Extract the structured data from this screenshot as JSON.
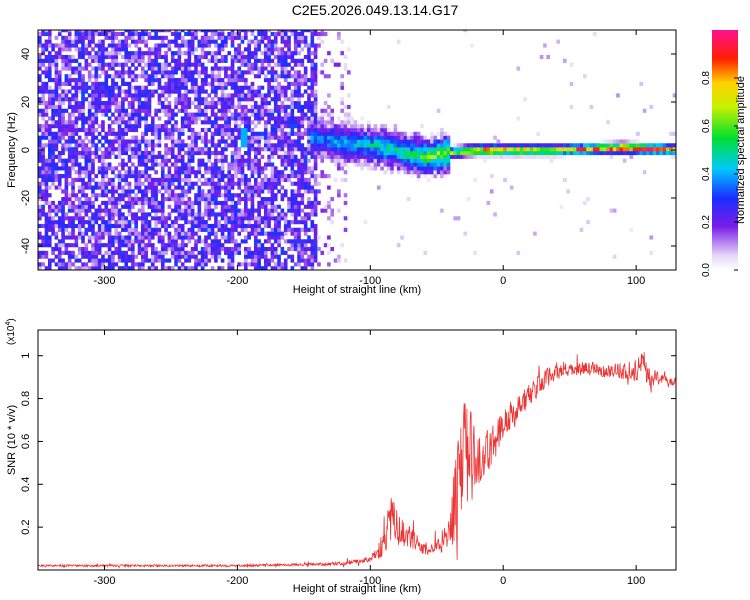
{
  "title": "C2E5.2026.049.13.14.G17",
  "chart_data": [
    {
      "type": "heatmap",
      "xlabel": "Height of straight line (km)",
      "ylabel": "Frequency (Hz)",
      "xlim": [
        -350,
        130
      ],
      "ylim": [
        -50,
        50
      ],
      "xticks": [
        -300,
        -200,
        -100,
        0,
        100
      ],
      "yticks": [
        -40,
        -20,
        0,
        20,
        40
      ],
      "colorbar": {
        "label": "Normalized spectral amplitude",
        "range": [
          0.0,
          1.0
        ],
        "ticks": [
          0.0,
          0.2,
          0.4,
          0.6,
          0.8
        ],
        "colormap": "rainbow (white-purple-blue-cyan-green-yellow-red-magenta)"
      },
      "ridge": {
        "description": "Signal ridge: noise at 0.1–0.3 for heights below -140 km; scattered tone near -195 km; concentrated energy near 0 Hz above -140 km, peaking (about 0.9–1.0) near 0 Hz from -40 to 130 km",
        "points": [
          {
            "x": -140,
            "freq": 5,
            "amp": 0.4
          },
          {
            "x": -120,
            "freq": 3,
            "amp": 0.45
          },
          {
            "x": -100,
            "freq": 2,
            "amp": 0.5
          },
          {
            "x": -80,
            "freq": 0,
            "amp": 0.55
          },
          {
            "x": -60,
            "freq": -3,
            "amp": 0.6
          },
          {
            "x": -40,
            "freq": -1,
            "amp": 0.75
          },
          {
            "x": -20,
            "freq": 0,
            "amp": 0.9
          },
          {
            "x": 0,
            "freq": 0,
            "amp": 0.95
          },
          {
            "x": 40,
            "freq": 0,
            "amp": 0.8
          },
          {
            "x": 90,
            "freq": 1,
            "amp": 1.0
          },
          {
            "x": 130,
            "freq": 0,
            "amp": 0.85
          }
        ]
      }
    },
    {
      "type": "line",
      "xlabel": "Height of straight line (km)",
      "ylabel": "SNR (10 * v/v)",
      "ymultiplier": "(x10^4)",
      "ymultiplier_base": "(x10",
      "ymultiplier_exp": "4",
      "ymultiplier_close": ")",
      "xlim": [
        -350,
        130
      ],
      "ylim": [
        0,
        1.12
      ],
      "xticks": [
        -300,
        -200,
        -100,
        0,
        100
      ],
      "yticks": [
        0.2,
        0.4,
        0.6,
        0.8,
        1
      ],
      "color": "#ee3333",
      "series": [
        {
          "name": "SNR",
          "x": [
            -350,
            -300,
            -250,
            -200,
            -150,
            -120,
            -100,
            -90,
            -85,
            -80,
            -70,
            -60,
            -50,
            -40,
            -35,
            -30,
            -25,
            -20,
            -15,
            -10,
            -5,
            0,
            10,
            20,
            30,
            40,
            50,
            60,
            80,
            100,
            105,
            110,
            120,
            130
          ],
          "values": [
            0.02,
            0.02,
            0.02,
            0.02,
            0.025,
            0.03,
            0.05,
            0.12,
            0.25,
            0.2,
            0.15,
            0.1,
            0.1,
            0.2,
            0.35,
            0.5,
            0.55,
            0.5,
            0.52,
            0.58,
            0.62,
            0.68,
            0.75,
            0.82,
            0.88,
            0.93,
            0.93,
            0.94,
            0.93,
            0.93,
            0.95,
            0.9,
            0.89,
            0.88
          ],
          "spread": [
            0.005,
            0.005,
            0.005,
            0.005,
            0.006,
            0.008,
            0.012,
            0.06,
            0.12,
            0.08,
            0.05,
            0.03,
            0.03,
            0.1,
            0.22,
            0.28,
            0.25,
            0.12,
            0.1,
            0.1,
            0.09,
            0.08,
            0.06,
            0.05,
            0.05,
            0.04,
            0.03,
            0.03,
            0.03,
            0.05,
            0.07,
            0.05,
            0.02,
            0.02
          ]
        }
      ]
    }
  ]
}
